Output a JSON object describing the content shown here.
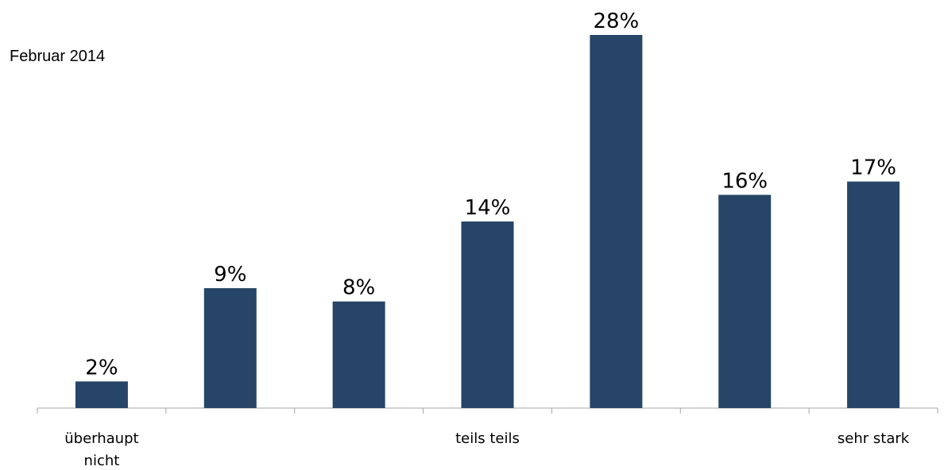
{
  "chart_data": {
    "type": "bar",
    "title": "Februar 2014",
    "categories": [
      "überhaupt nicht",
      "",
      "",
      "teils teils",
      "",
      "",
      "sehr stark"
    ],
    "values": [
      2,
      9,
      8,
      14,
      28,
      16,
      17
    ],
    "value_labels": [
      "2%",
      "9%",
      "8%",
      "14%",
      "28%",
      "16%",
      "17%"
    ],
    "ylim": [
      0,
      28
    ],
    "grid": false,
    "legend": "none",
    "bar_color": "#264567",
    "axis_color": "#a6a6a6"
  }
}
